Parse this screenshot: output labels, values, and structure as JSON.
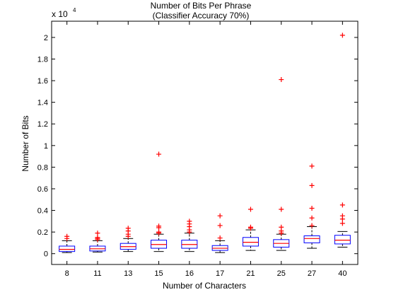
{
  "chart_data": {
    "type": "box",
    "title": [
      "Number of Bits Per Phrase",
      "(Classifier Accuracy 70%)"
    ],
    "xlabel": "Number of Characters",
    "ylabel": "Number of Bits",
    "y_multiplier_label": "x 10",
    "y_multiplier_exponent": "4",
    "y_display_scale": 10000,
    "ylim": [
      -1000,
      21500
    ],
    "yticks": [
      0,
      2000,
      4000,
      6000,
      8000,
      10000,
      12000,
      14000,
      16000,
      18000,
      20000
    ],
    "ytick_labels": [
      "0",
      "0.2",
      "0.4",
      "0.6",
      "0.8",
      "1",
      "1.2",
      "1.4",
      "1.6",
      "1.8",
      "2"
    ],
    "grid": false,
    "categories": [
      "8",
      "11",
      "13",
      "15",
      "16",
      "17",
      "21",
      "25",
      "27",
      "40"
    ],
    "boxes": [
      {
        "whisker_low": 100,
        "q1": 200,
        "median": 400,
        "q3": 700,
        "whisker_high": 1200,
        "outliers": [
          1400,
          1600
        ]
      },
      {
        "whisker_low": 150,
        "q1": 250,
        "median": 450,
        "q3": 700,
        "whisker_high": 1200,
        "outliers": [
          1300,
          1400,
          1500,
          1900
        ]
      },
      {
        "whisker_low": 200,
        "q1": 400,
        "median": 650,
        "q3": 950,
        "whisker_high": 1400,
        "outliers": [
          1600,
          1800,
          2100,
          2350
        ]
      },
      {
        "whisker_low": 200,
        "q1": 500,
        "median": 850,
        "q3": 1250,
        "whisker_high": 1800,
        "outliers": [
          1900,
          2000,
          2400,
          2550,
          9200
        ]
      },
      {
        "whisker_low": 200,
        "q1": 500,
        "median": 850,
        "q3": 1250,
        "whisker_high": 1900,
        "outliers": [
          2000,
          2200,
          2500,
          2750,
          3000
        ]
      },
      {
        "whisker_low": 100,
        "q1": 300,
        "median": 500,
        "q3": 750,
        "whisker_high": 1200,
        "outliers": [
          1450,
          2600,
          3500
        ]
      },
      {
        "whisker_low": 300,
        "q1": 700,
        "median": 1050,
        "q3": 1500,
        "whisker_high": 2200,
        "outliers": [
          2350,
          2450,
          4100
        ]
      },
      {
        "whisker_low": 300,
        "q1": 600,
        "median": 950,
        "q3": 1300,
        "whisker_high": 1800,
        "outliers": [
          1900,
          2100,
          2450,
          4100,
          16100
        ]
      },
      {
        "whisker_low": 500,
        "q1": 1000,
        "median": 1400,
        "q3": 1650,
        "whisker_high": 2500,
        "outliers": [
          2600,
          3300,
          4200,
          6300,
          8100
        ]
      },
      {
        "whisker_low": 600,
        "q1": 900,
        "median": 1250,
        "q3": 1700,
        "whisker_high": 2050,
        "outliers": [
          2800,
          3200,
          3500,
          4500,
          20200
        ]
      }
    ],
    "colors": {
      "box": "#0000ff",
      "median": "#ff0000",
      "outlier": "#ff0000",
      "whisker": "#000000",
      "axes": "#000000"
    }
  }
}
